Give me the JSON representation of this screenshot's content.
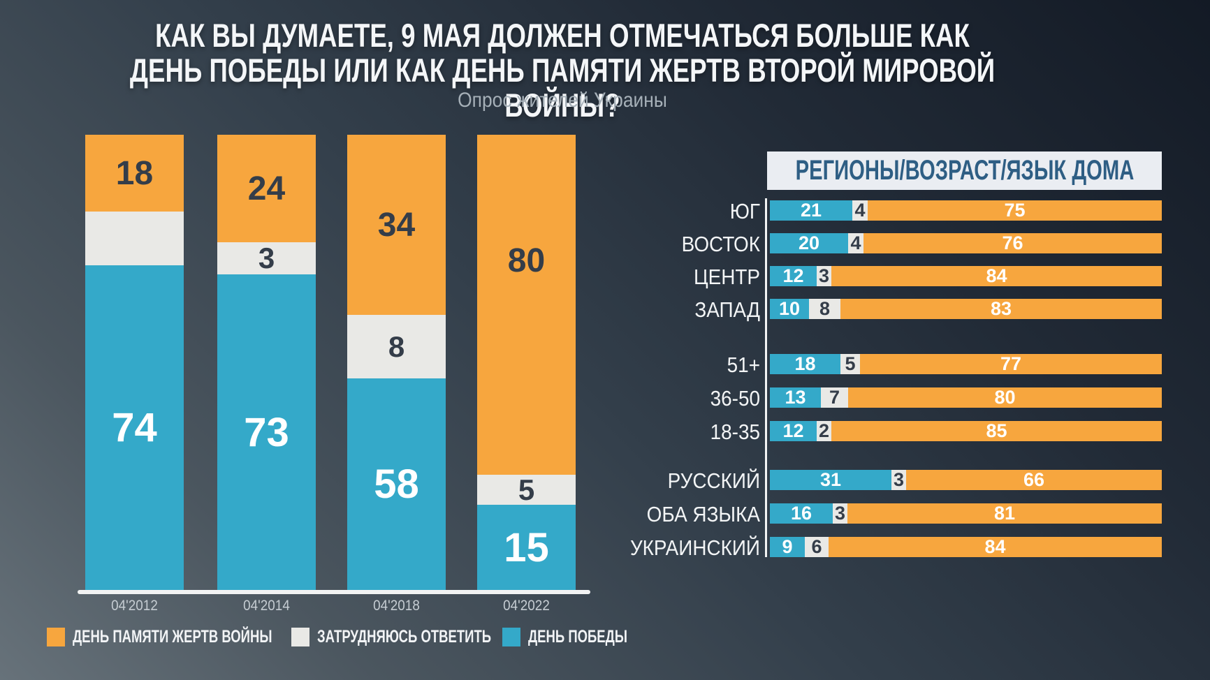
{
  "header": {
    "title_line1": "КАК ВЫ ДУМАЕТЕ, 9 МАЯ ДОЛЖЕН ОТМЕЧАТЬСЯ БОЛЬШЕ КАК",
    "title_line2": "ДЕНЬ ПОБЕДЫ ИЛИ КАК ДЕНЬ ПАМЯТИ ЖЕРТВ ВТОРОЙ МИРОВОЙ ВОЙНЫ?",
    "subtitle": "Опрос жителей Украины"
  },
  "colors": {
    "memorial_orange": "#F7A63E",
    "victory_blue": "#34A9C9",
    "undecided_gray": "#E9E9E6",
    "dark_number": "#343D49",
    "white_number": "#FFFFFF",
    "header_text": "#2E5E84",
    "header_bg": "#EAEDF2",
    "axis_label": "#C5CCD2",
    "axis_line": "#F2F3F3"
  },
  "chart_data": [
    {
      "id": "trend-by-year",
      "type": "bar",
      "stacked": true,
      "orientation": "vertical",
      "title": "",
      "xlabel": "",
      "ylabel": "",
      "ylim": [
        0,
        100
      ],
      "grid": false,
      "categories": [
        "04'2012",
        "04'2014",
        "04'2018",
        "04'2022"
      ],
      "series": [
        {
          "name": "ДЕНЬ ПАМЯТИ ЖЕРТВ ВОЙНЫ",
          "key": "memorial",
          "values": [
            18,
            24,
            34,
            80
          ],
          "value_labels": [
            "18",
            "24",
            "34",
            "80"
          ]
        },
        {
          "name": "ЗАТРУДНЯЮСЬ ОТВЕТИТЬ",
          "key": "undecided",
          "values": [
            8,
            3,
            8,
            5
          ],
          "value_labels": [
            "",
            "3",
            "8",
            "5"
          ]
        },
        {
          "name": "ДЕНЬ ПОБЕДЫ",
          "key": "victory",
          "values": [
            74,
            73,
            58,
            15
          ],
          "value_labels": [
            "74",
            "73",
            "58",
            "15"
          ]
        }
      ]
    },
    {
      "id": "breakdown",
      "type": "bar",
      "stacked": true,
      "orientation": "horizontal",
      "header": "РЕГИОНЫ/ВОЗРАСТ/ЯЗЫК ДОМА",
      "xlim": [
        0,
        100
      ],
      "series_order": [
        "victory",
        "undecided",
        "memorial"
      ],
      "groups": [
        {
          "rows": [
            [
              "ЮГ",
              21,
              4,
              75
            ],
            [
              "ВОСТОК",
              20,
              4,
              76
            ],
            [
              "ЦЕНТР",
              12,
              3,
              84
            ],
            [
              "ЗАПАД",
              10,
              8,
              83
            ]
          ]
        },
        {
          "rows": [
            [
              "51+",
              18,
              5,
              77
            ],
            [
              "36-50",
              13,
              7,
              80
            ],
            [
              "18-35",
              12,
              2,
              85
            ]
          ]
        },
        {
          "rows": [
            [
              "РУССКИЙ",
              31,
              3,
              66
            ],
            [
              "ОБА ЯЗЫКА",
              16,
              3,
              81
            ],
            [
              "УКРАИНСКИЙ",
              9,
              6,
              84
            ]
          ]
        }
      ]
    }
  ],
  "legend": {
    "items": [
      {
        "label": "ДЕНЬ ПАМЯТИ ЖЕРТВ ВОЙНЫ",
        "color_key": "memorial_orange"
      },
      {
        "label": "ЗАТРУДНЯЮСЬ ОТВЕТИТЬ",
        "color_key": "undecided_gray"
      },
      {
        "label": "ДЕНЬ ПОБЕДЫ",
        "color_key": "victory_blue"
      }
    ]
  }
}
